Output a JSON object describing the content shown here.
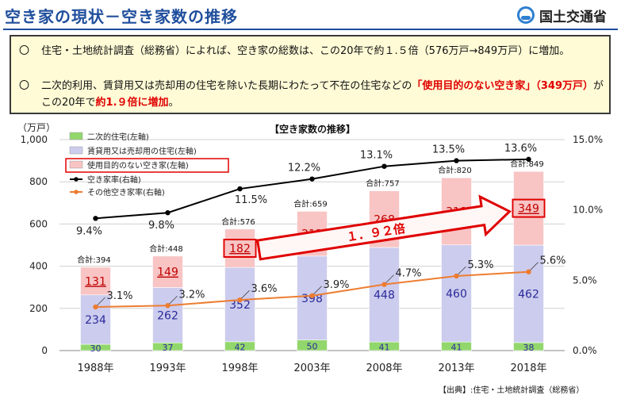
{
  "header": {
    "title": "空き家の現状－空き家数の推移",
    "logo_text": "国土交通省"
  },
  "summary": {
    "bullet_mark": "〇",
    "bullet1": "住宅・土地統計調査（総務省）によれば、空き家の総数は、この20年で約１.５倍（576万戸→849万戸）に増加。",
    "bullet2_pre": "二次的利用、賃貸用又は売却用の住宅を除いた長期にわたって不在の住宅などの",
    "bullet2_red1": "「使用目的のない空き家」（349万戸）",
    "bullet2_mid": "がこの20年で",
    "bullet2_red2": "約1.９倍に増加",
    "bullet2_end": "。"
  },
  "chart_data": {
    "type": "bar",
    "title": "【空き家数の推移】",
    "ylabel": "（万戸）",
    "ylim": [
      0,
      1000
    ],
    "ylim_right": [
      0,
      15
    ],
    "y_ticks": [
      "0",
      "200",
      "400",
      "600",
      "800",
      "1,000"
    ],
    "y_ticks_right": [
      "0.0%",
      "5.0%",
      "10.0%",
      "15.0%"
    ],
    "categories": [
      "1988年",
      "1993年",
      "1998年",
      "2003年",
      "2008年",
      "2013年",
      "2018年"
    ],
    "series": [
      {
        "name": "二次的住宅(左軸)",
        "values": [
          30,
          37,
          42,
          50,
          41,
          41,
          38
        ],
        "color": "#92d76c"
      },
      {
        "name": "賃貸用又は売却用の住宅(左軸)",
        "values": [
          234,
          262,
          352,
          398,
          448,
          460,
          462
        ],
        "color": "#ccccee"
      },
      {
        "name": "使用目的のない空き家(左軸)",
        "values": [
          131,
          149,
          182,
          212,
          268,
          318,
          349
        ],
        "color": "#f8c4c4"
      }
    ],
    "total_prefix": "合計:",
    "totals": [
      394,
      448,
      576,
      659,
      757,
      820,
      849
    ],
    "lines": [
      {
        "name": "空き家率(右軸)",
        "values": [
          9.4,
          9.8,
          11.5,
          12.2,
          13.1,
          13.5,
          13.6
        ],
        "labels": [
          "9.4%",
          "9.8%",
          "11.5%",
          "12.2%",
          "13.1%",
          "13.5%",
          "13.6%"
        ],
        "color": "#000000"
      },
      {
        "name": "その他空き家率(右軸)",
        "values": [
          3.1,
          3.2,
          3.6,
          3.9,
          4.7,
          5.3,
          5.6
        ],
        "labels": [
          "3.1%",
          "3.2%",
          "3.6%",
          "3.9%",
          "4.7%",
          "5.3%",
          "5.6%"
        ],
        "color": "#ed7d31"
      }
    ],
    "growth_label": "１．９２倍",
    "colors": {
      "highlight": "#e00000",
      "value_text": "#2a2a9a",
      "value_text_red": "#c00000"
    }
  },
  "source": "【出典】:住宅・土地統計調査（総務省）"
}
